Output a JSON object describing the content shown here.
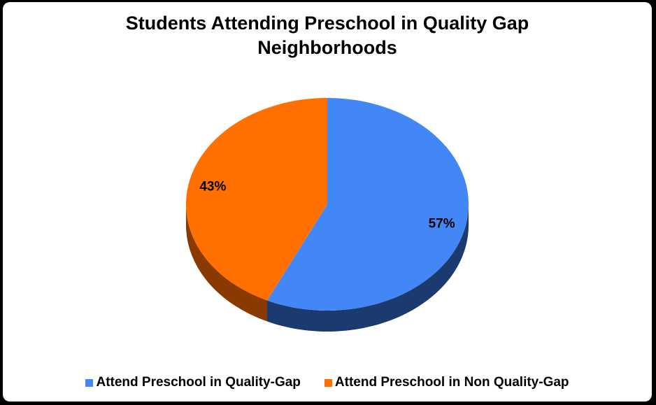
{
  "chart_data": {
    "type": "pie",
    "title_lines": [
      "Students Attending Preschool in Quality Gap",
      "Neighborhoods"
    ],
    "categories": [
      "Attend Preschool in Quality-Gap",
      "Attend Preschool in Non Quality-Gap"
    ],
    "values": [
      57,
      43
    ],
    "data_labels": [
      "57%",
      "43%"
    ],
    "colors": [
      "#4287f5",
      "#ff7000"
    ],
    "side_colors": [
      "#1a3a70",
      "#8a3a00"
    ],
    "legend_position": "bottom",
    "three_d": true
  }
}
